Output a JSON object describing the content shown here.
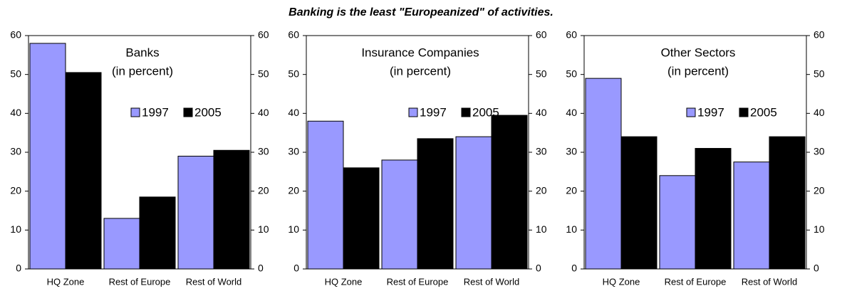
{
  "title": "Banking is the least \"Europeanized\" of activities.",
  "chart_data": [
    {
      "type": "bar",
      "title": "Banks",
      "subtitle": "(in percent)",
      "categories": [
        "HQ Zone",
        "Rest of Europe",
        "Rest of World"
      ],
      "series": [
        {
          "name": "1997",
          "color": "#9999ff",
          "values": [
            58,
            13,
            29
          ]
        },
        {
          "name": "2005",
          "color": "#000000",
          "values": [
            50.5,
            18.5,
            30.5
          ]
        }
      ],
      "ylim": [
        0,
        60
      ],
      "yticks": [
        0,
        10,
        20,
        30,
        40,
        50,
        60
      ],
      "y2lim": [
        0,
        60
      ],
      "y2ticks": [
        0,
        10,
        20,
        30,
        40,
        50,
        60
      ]
    },
    {
      "type": "bar",
      "title": "Insurance Companies",
      "subtitle": "(in percent)",
      "categories": [
        "HQ Zone",
        "Rest of Europe",
        "Rest of World"
      ],
      "series": [
        {
          "name": "1997",
          "color": "#9999ff",
          "values": [
            38,
            28,
            34
          ]
        },
        {
          "name": "2005",
          "color": "#000000",
          "values": [
            26,
            33.5,
            39.5
          ]
        }
      ],
      "ylim": [
        0,
        60
      ],
      "yticks": [
        0,
        10,
        20,
        30,
        40,
        50,
        60
      ],
      "y2lim": [
        0,
        60
      ],
      "y2ticks": [
        0,
        10,
        20,
        30,
        40,
        50,
        60
      ]
    },
    {
      "type": "bar",
      "title": "Other Sectors",
      "subtitle": "(in percent)",
      "categories": [
        "HQ Zone",
        "Rest of Europe",
        "Rest of World"
      ],
      "series": [
        {
          "name": "1997",
          "color": "#9999ff",
          "values": [
            49,
            24,
            27.5
          ]
        },
        {
          "name": "2005",
          "color": "#000000",
          "values": [
            34,
            31,
            34
          ]
        }
      ],
      "ylim": [
        0,
        60
      ],
      "yticks": [
        0,
        10,
        20,
        30,
        40,
        50,
        60
      ],
      "y2lim": [
        0,
        60
      ],
      "y2ticks": [
        0,
        10,
        20,
        30,
        40,
        50,
        60
      ]
    }
  ]
}
